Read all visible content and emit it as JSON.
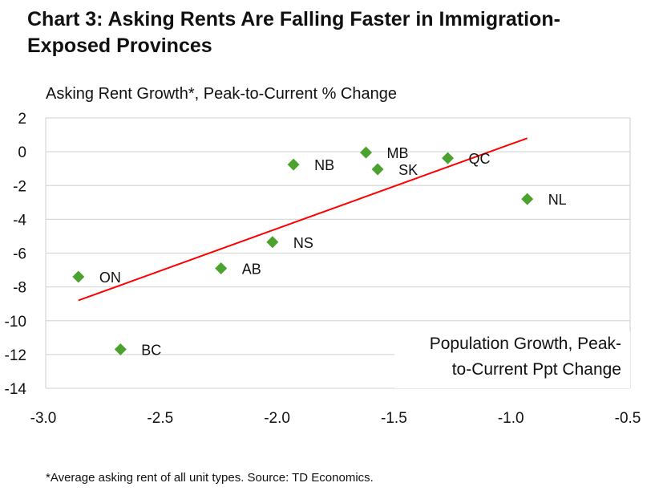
{
  "chart_data": {
    "type": "scatter",
    "title": "Chart 3: Asking Rents Are Falling Faster in Immigration-Exposed Provinces",
    "ylabel": "Asking Rent Growth*, Peak-to-Current % Change",
    "xlabel_lines": [
      "Population Growth, Peak-",
      "to-Current Ppt Change"
    ],
    "xlim": [
      -3.0,
      -0.5
    ],
    "ylim": [
      -14,
      2
    ],
    "xticks": [
      "-3.0",
      "-2.5",
      "-2.0",
      "-1.5",
      "-1.0",
      "-0.5"
    ],
    "yticks": [
      "2",
      "0",
      "-2",
      "-4",
      "-6",
      "-8",
      "-10",
      "-12",
      "-14"
    ],
    "grid": "horizontal",
    "marker_color": "#4ca22f",
    "trend_color": "#ff0000",
    "points": [
      {
        "label": "ON",
        "x": -2.86,
        "y": -7.4
      },
      {
        "label": "BC",
        "x": -2.68,
        "y": -11.7
      },
      {
        "label": "AB",
        "x": -2.25,
        "y": -6.9
      },
      {
        "label": "NS",
        "x": -2.03,
        "y": -5.35
      },
      {
        "label": "NB",
        "x": -1.94,
        "y": -0.76
      },
      {
        "label": "MB",
        "x": -1.63,
        "y": -0.05
      },
      {
        "label": "SK",
        "x": -1.58,
        "y": -1.04
      },
      {
        "label": "QC",
        "x": -1.28,
        "y": -0.38
      },
      {
        "label": "NL",
        "x": -0.94,
        "y": -2.8
      }
    ],
    "trendline": {
      "x": [
        -2.86,
        -0.94
      ],
      "y": [
        -8.8,
        0.8
      ]
    },
    "footnote": "*Average asking rent of all unit types. Source: TD Economics."
  }
}
